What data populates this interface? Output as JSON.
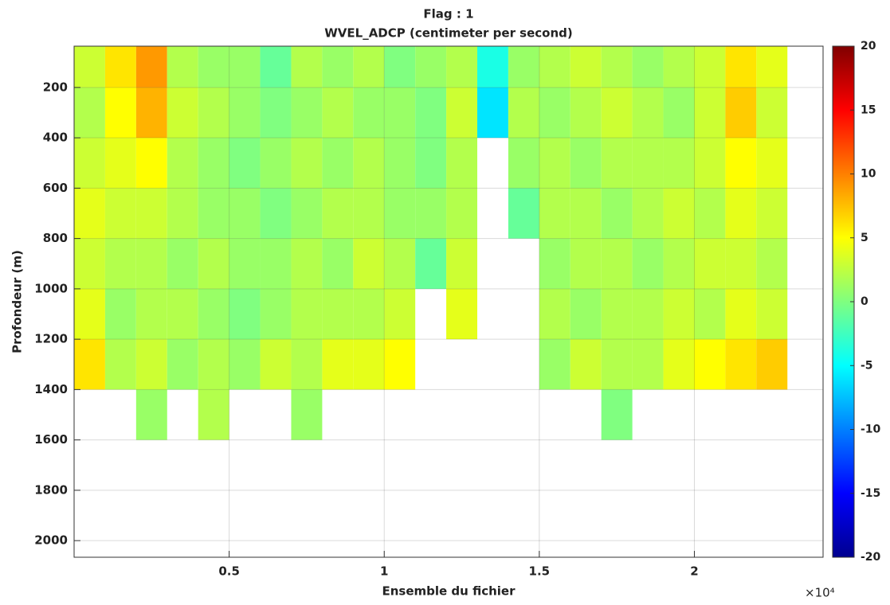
{
  "chart_data": {
    "type": "heatmap",
    "title": "Flag : 1",
    "subtitle": "WVEL_ADCP (centimeter per second)",
    "x_label": "Ensemble du fichier",
    "x_offset_label": "×10⁴",
    "y_label": "Profondeur (m)",
    "x": [
      500,
      1500,
      2500,
      3500,
      4500,
      5500,
      6500,
      7500,
      8500,
      9500,
      10500,
      11500,
      12500,
      13500,
      14500,
      15500,
      16500,
      17500,
      18500,
      19500,
      20500,
      21500,
      22500,
      23500
    ],
    "y": [
      100,
      300,
      500,
      700,
      900,
      1100,
      1300,
      1500
    ],
    "z": [
      [
        3,
        6,
        9,
        2,
        1,
        1,
        -1,
        2,
        1,
        2,
        0,
        1,
        2,
        -4,
        1,
        2,
        3,
        2,
        1,
        2,
        3,
        6,
        4,
        null
      ],
      [
        2,
        5,
        8,
        3,
        2,
        1,
        0,
        1,
        2,
        1,
        1,
        0,
        3,
        -6,
        2,
        1,
        2,
        3,
        2,
        1,
        3,
        7,
        3,
        null
      ],
      [
        3,
        4,
        5,
        2,
        1,
        0,
        1,
        2,
        1,
        2,
        1,
        0,
        2,
        null,
        1,
        2,
        1,
        2,
        2,
        2,
        3,
        5,
        4,
        null
      ],
      [
        4,
        3,
        3,
        2,
        1,
        1,
        0,
        1,
        2,
        2,
        1,
        1,
        2,
        null,
        -1,
        2,
        2,
        1,
        2,
        3,
        2,
        4,
        3,
        null
      ],
      [
        3,
        2,
        2,
        1,
        2,
        1,
        1,
        2,
        1,
        3,
        2,
        -1,
        3,
        null,
        null,
        1,
        2,
        2,
        1,
        2,
        3,
        3,
        2,
        null
      ],
      [
        4,
        1,
        2,
        2,
        1,
        0,
        1,
        2,
        2,
        2,
        3,
        null,
        4,
        null,
        null,
        2,
        1,
        2,
        2,
        3,
        2,
        4,
        3,
        null
      ],
      [
        6,
        2,
        3,
        1,
        2,
        1,
        3,
        2,
        4,
        4,
        5,
        null,
        null,
        null,
        null,
        1,
        3,
        2,
        2,
        4,
        5,
        6,
        7,
        null
      ],
      [
        null,
        null,
        1,
        null,
        2,
        null,
        null,
        1,
        null,
        null,
        null,
        null,
        null,
        null,
        null,
        null,
        null,
        0,
        null,
        null,
        null,
        null,
        null,
        null
      ]
    ],
    "xlim": [
      0,
      24150
    ],
    "ylim": [
      36,
      2066
    ],
    "y_reversed": true,
    "clim": [
      -20,
      20
    ],
    "colormap": "jet",
    "grid": true,
    "xticks": [
      {
        "value": 5000,
        "label": "0.5"
      },
      {
        "value": 10000,
        "label": "1"
      },
      {
        "value": 15000,
        "label": "1.5"
      },
      {
        "value": 20000,
        "label": "2"
      }
    ],
    "yticks": [
      200,
      400,
      600,
      800,
      1000,
      1200,
      1400,
      1600,
      1800,
      2000
    ],
    "cticks": [
      20,
      15,
      10,
      5,
      0,
      -5,
      -10,
      -15,
      -20
    ]
  }
}
